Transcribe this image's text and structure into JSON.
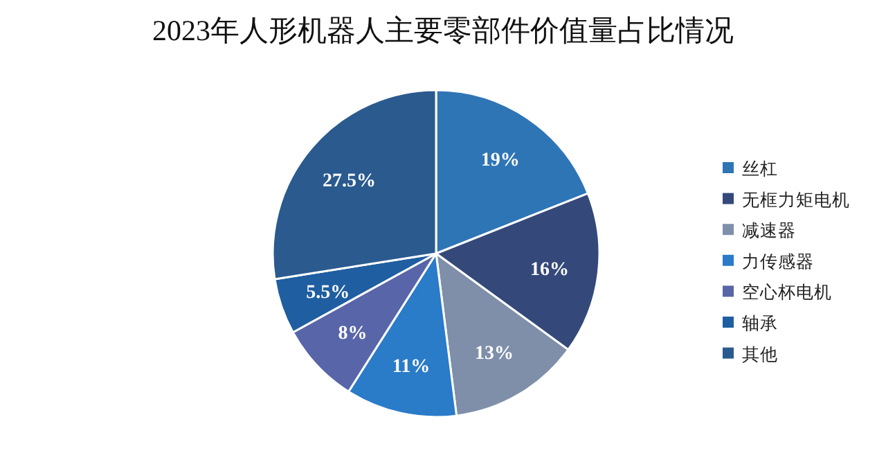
{
  "chart_data": {
    "type": "pie",
    "title": "2023年人形机器人主要零部件价值量占比情况",
    "categories": [
      "丝杠",
      "无框力矩电机",
      "减速器",
      "力传感器",
      "空心杯电机",
      "轴承",
      "其他"
    ],
    "values": [
      19,
      16,
      13,
      11,
      8,
      5.5,
      27.5
    ],
    "colors": [
      "#2e75b6",
      "#34497a",
      "#7f8fa9",
      "#2a7bc8",
      "#5865a8",
      "#1f5ea0",
      "#2a5a8e"
    ],
    "value_labels": [
      "19%",
      "16%",
      "13%",
      "11%",
      "8%",
      "5.5%",
      "27.5%"
    ],
    "legend": "right"
  }
}
